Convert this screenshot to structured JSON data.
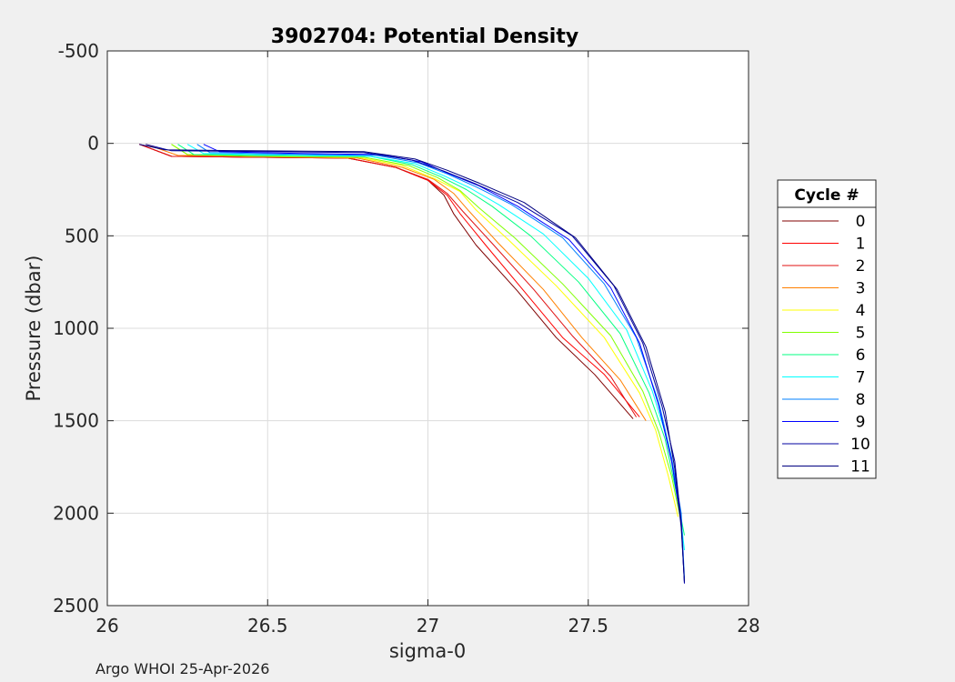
{
  "chart_data": {
    "type": "line",
    "title": "3902704: Potential Density",
    "xlabel": "sigma-0",
    "ylabel": "Pressure (dbar)",
    "xlim": [
      26,
      28
    ],
    "ylim": [
      -500,
      2500
    ],
    "y_reversed": true,
    "xticks": [
      "26",
      "26.5",
      "27",
      "27.5",
      "28"
    ],
    "yticks": [
      "-500",
      "0",
      "500",
      "1000",
      "1500",
      "2000",
      "2500"
    ],
    "grid": true,
    "legend": {
      "title": "Cycle #",
      "placement": "right"
    },
    "series": [
      {
        "name": "0",
        "color": "#800000",
        "x": [
          26.1,
          26.2,
          26.45,
          26.75,
          26.9,
          27.0,
          27.05,
          27.08,
          27.15,
          27.28,
          27.4,
          27.52,
          27.64
        ],
        "y": [
          5,
          70,
          75,
          80,
          130,
          200,
          280,
          380,
          550,
          800,
          1050,
          1250,
          1490
        ]
      },
      {
        "name": "1",
        "color": "#ff0000",
        "x": [
          26.1,
          26.2,
          26.45,
          26.75,
          26.9,
          27.0,
          27.06,
          27.1,
          27.18,
          27.3,
          27.42,
          27.55,
          27.66
        ],
        "y": [
          5,
          70,
          75,
          80,
          130,
          200,
          280,
          380,
          550,
          800,
          1050,
          1250,
          1480
        ]
      },
      {
        "name": "2",
        "color": "#e01010",
        "x": [
          26.1,
          26.2,
          26.45,
          26.75,
          26.9,
          27.0,
          27.06,
          27.11,
          27.2,
          27.33,
          27.45,
          27.57,
          27.65
        ],
        "y": [
          5,
          70,
          75,
          80,
          130,
          195,
          270,
          370,
          540,
          790,
          1040,
          1260,
          1480
        ]
      },
      {
        "name": "3",
        "color": "#ff8000",
        "x": [
          26.12,
          26.22,
          26.45,
          26.78,
          26.92,
          27.02,
          27.08,
          27.13,
          27.22,
          27.36,
          27.48,
          27.6,
          27.68
        ],
        "y": [
          5,
          65,
          70,
          80,
          130,
          195,
          270,
          370,
          540,
          790,
          1050,
          1280,
          1500
        ]
      },
      {
        "name": "4",
        "color": "#ffff00",
        "x": [
          26.2,
          26.25,
          26.45,
          26.78,
          26.92,
          27.02,
          27.1,
          27.15,
          27.25,
          27.4,
          27.55,
          27.66,
          27.71,
          27.75,
          27.78
        ],
        "y": [
          5,
          60,
          70,
          75,
          120,
          190,
          260,
          360,
          520,
          770,
          1050,
          1350,
          1550,
          1800,
          2020
        ]
      },
      {
        "name": "5",
        "color": "#80ff00",
        "x": [
          26.2,
          26.25,
          26.45,
          26.8,
          26.94,
          27.03,
          27.1,
          27.16,
          27.27,
          27.42,
          27.57,
          27.67,
          27.72,
          27.76,
          27.79
        ],
        "y": [
          5,
          60,
          70,
          75,
          120,
          185,
          255,
          350,
          510,
          760,
          1040,
          1340,
          1560,
          1800,
          2050
        ]
      },
      {
        "name": "6",
        "color": "#00ff80",
        "x": [
          26.22,
          26.27,
          26.5,
          26.82,
          26.95,
          27.04,
          27.12,
          27.2,
          27.32,
          27.47,
          27.6,
          27.69,
          27.74,
          27.77,
          27.8
        ],
        "y": [
          5,
          60,
          65,
          70,
          115,
          180,
          250,
          340,
          500,
          750,
          1030,
          1350,
          1600,
          1850,
          2120
        ]
      },
      {
        "name": "7",
        "color": "#00ffff",
        "x": [
          26.25,
          26.3,
          26.5,
          26.82,
          26.96,
          27.05,
          27.13,
          27.22,
          27.36,
          27.5,
          27.62,
          27.7,
          27.75,
          27.78,
          27.8
        ],
        "y": [
          5,
          55,
          62,
          70,
          110,
          175,
          240,
          330,
          490,
          730,
          1010,
          1340,
          1620,
          1900,
          2200
        ]
      },
      {
        "name": "8",
        "color": "#0080ff",
        "x": [
          26.28,
          26.32,
          26.55,
          26.84,
          26.97,
          27.06,
          27.15,
          27.26,
          27.42,
          27.55,
          27.65,
          27.72,
          27.76,
          27.79,
          27.8
        ],
        "y": [
          5,
          50,
          58,
          65,
          105,
          165,
          235,
          330,
          510,
          760,
          1050,
          1400,
          1700,
          2000,
          2350
        ]
      },
      {
        "name": "9",
        "color": "#0000ff",
        "x": [
          26.3,
          26.35,
          26.6,
          26.85,
          26.98,
          27.06,
          27.16,
          27.28,
          27.44,
          27.57,
          27.66,
          27.72,
          27.76,
          27.79,
          27.8
        ],
        "y": [
          5,
          45,
          55,
          60,
          100,
          160,
          230,
          340,
          520,
          780,
          1080,
          1420,
          1720,
          2050,
          2380
        ]
      },
      {
        "name": "10",
        "color": "#0000a0",
        "x": [
          26.12,
          26.2,
          26.5,
          26.8,
          26.95,
          27.05,
          27.15,
          27.28,
          27.45,
          27.58,
          27.67,
          27.73,
          27.77,
          27.79,
          27.8
        ],
        "y": [
          5,
          40,
          45,
          50,
          90,
          150,
          220,
          320,
          500,
          770,
          1080,
          1420,
          1720,
          2050,
          2380
        ]
      },
      {
        "name": "11",
        "color": "#000080",
        "x": [
          26.1,
          26.18,
          26.45,
          26.8,
          26.96,
          27.06,
          27.16,
          27.3,
          27.46,
          27.59,
          27.68,
          27.74,
          27.77,
          27.79,
          27.8
        ],
        "y": [
          5,
          35,
          40,
          45,
          85,
          145,
          215,
          320,
          510,
          790,
          1100,
          1450,
          1760,
          2080,
          2370
        ]
      }
    ]
  },
  "footer": "Argo WHOI 25-Apr-2026"
}
